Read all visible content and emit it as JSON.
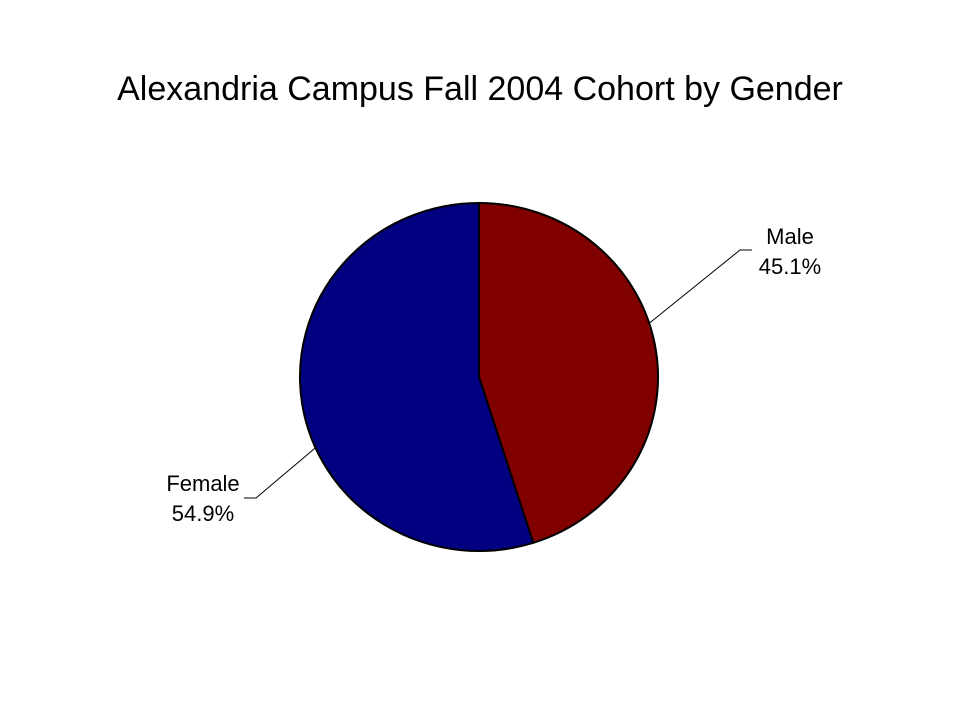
{
  "chart_data": {
    "type": "pie",
    "title": "Alexandria Campus Fall 2004 Cohort by Gender",
    "slices": [
      {
        "label": "Male",
        "value": 45.1,
        "value_label": "45.1%",
        "color": "#800000"
      },
      {
        "label": "Female",
        "value": 54.9,
        "value_label": "54.9%",
        "color": "#000080"
      }
    ],
    "legend": "none",
    "start_angle": "12 o'clock",
    "direction": "clockwise"
  }
}
